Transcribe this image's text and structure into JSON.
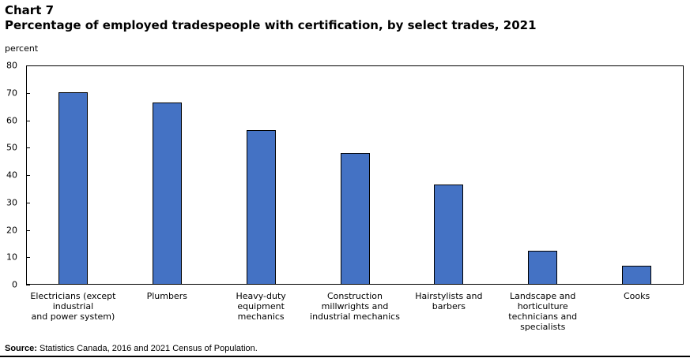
{
  "header": {
    "chart_number": "Chart 7",
    "title": "Percentage of employed tradespeople with certification,  by select trades, 2021"
  },
  "axis": {
    "y_label": "percent",
    "y_ticks": [
      "0",
      "10",
      "20",
      "30",
      "40",
      "50",
      "60",
      "70",
      "80"
    ]
  },
  "footer": {
    "source_label": "Source:",
    "source_text": " Statistics Canada, 2016 and 2021 Census of Population."
  },
  "style": {
    "bar_color": "#4472C4"
  },
  "chart_data": {
    "type": "bar",
    "title": "Percentage of employed tradespeople with certification, by select trades, 2021",
    "xlabel": "",
    "ylabel": "percent",
    "ylim": [
      0,
      80
    ],
    "yticks": [
      0,
      10,
      20,
      30,
      40,
      50,
      60,
      70,
      80
    ],
    "grid": false,
    "legend": null,
    "categories": [
      "Electricians (except industrial and power system)",
      "Plumbers",
      "Heavy-duty equipment mechanics",
      "Construction millwrights and industrial mechanics",
      "Hairstylists and barbers",
      "Landscape and horticulture technicians and specialists",
      "Cooks"
    ],
    "category_labels_wrapped": [
      "Electricians (except\nindustrial\nand power system)",
      "Plumbers",
      "Heavy-duty\nequipment\nmechanics",
      "Construction\nmillwrights and\nindustrial mechanics",
      "Hairstylists and\nbarbers",
      "Landscape and\nhorticulture\ntechnicians and\nspecialists",
      "Cooks"
    ],
    "values": [
      70.1,
      66.5,
      56.3,
      48.1,
      36.5,
      12.3,
      6.8
    ],
    "source": "Statistics Canada, 2016 and 2021 Census of Population."
  }
}
